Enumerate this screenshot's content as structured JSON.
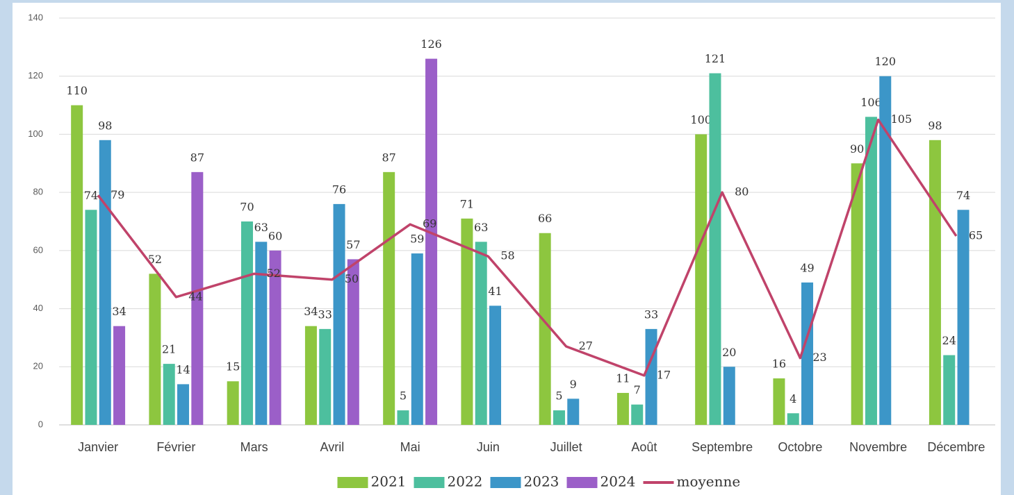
{
  "chart_data": {
    "type": "bar",
    "categories": [
      "Janvier",
      "Février",
      "Mars",
      "Avril",
      "Mai",
      "Juin",
      "Juillet",
      "Août",
      "Septembre",
      "Octobre",
      "Novembre",
      "Décembre"
    ],
    "series": [
      {
        "name": "2021",
        "color": "#8dc63f",
        "values": [
          110,
          52,
          15,
          34,
          87,
          71,
          66,
          11,
          100,
          16,
          90,
          98
        ]
      },
      {
        "name": "2022",
        "color": "#4dbf9e",
        "values": [
          74,
          21,
          70,
          33,
          5,
          63,
          5,
          7,
          121,
          4,
          106,
          24
        ]
      },
      {
        "name": "2023",
        "color": "#3c96c8",
        "values": [
          98,
          14,
          63,
          76,
          59,
          41,
          9,
          33,
          20,
          49,
          120,
          74
        ]
      },
      {
        "name": "2024",
        "color": "#9b5fc8",
        "values": [
          34,
          87,
          60,
          57,
          126,
          null,
          null,
          null,
          null,
          null,
          null,
          null
        ]
      },
      {
        "name": "moyenne",
        "color": "#c0436a",
        "type": "line",
        "values": [
          79,
          44,
          52,
          50,
          69,
          58,
          27,
          17,
          80,
          23,
          105,
          65
        ]
      }
    ],
    "ylim": [
      0,
      140
    ],
    "yticks": [
      0,
      20,
      40,
      60,
      80,
      100,
      120,
      140
    ],
    "grid": true,
    "legend_position": "bottom"
  }
}
